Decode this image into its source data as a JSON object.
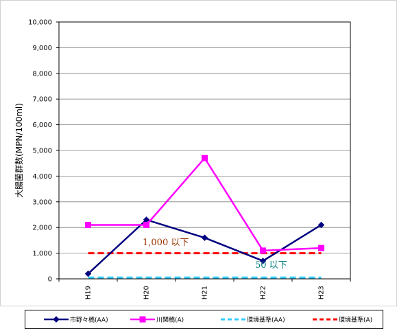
{
  "chart_data": {
    "type": "line",
    "ylabel": "大腸菌群数(MPN/100ml)",
    "categories": [
      "H19",
      "H20",
      "H21",
      "H22",
      "H23"
    ],
    "ylim": [
      0,
      10000
    ],
    "yticks": [
      0,
      1000,
      2000,
      3000,
      4000,
      5000,
      6000,
      7000,
      8000,
      9000,
      10000
    ],
    "ytick_labels": [
      "0",
      "1,000",
      "2,000",
      "3,000",
      "4,000",
      "5,000",
      "6,000",
      "7,000",
      "8,000",
      "9,000",
      "10,000"
    ],
    "grid": true,
    "legend_position": "bottom",
    "series": [
      {
        "name": "市野々橋(AA)",
        "values": [
          200,
          2300,
          1600,
          700,
          2100
        ],
        "color": "#000080",
        "style": "solid",
        "marker": "diamond"
      },
      {
        "name": "川関橋(A)",
        "values": [
          2100,
          2100,
          4700,
          1100,
          1200
        ],
        "color": "#ff00ff",
        "style": "solid",
        "marker": "square"
      },
      {
        "name": "環境基準(AA)",
        "values": [
          50,
          50,
          50,
          50,
          50
        ],
        "color": "#33ccff",
        "style": "dashed",
        "marker": "none"
      },
      {
        "name": "環境基準(A)",
        "values": [
          1000,
          1000,
          1000,
          1000,
          1000
        ],
        "color": "#ff0000",
        "style": "dashed",
        "marker": "none"
      }
    ],
    "annotations": [
      {
        "text": "1,000 以下",
        "color": "#993300"
      },
      {
        "text": "50 以下",
        "color": "#008080"
      }
    ]
  }
}
